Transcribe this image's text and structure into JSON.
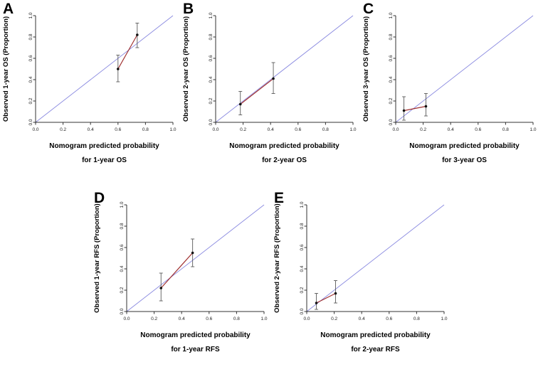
{
  "figure": {
    "background": "#ffffff"
  },
  "colors": {
    "reference_line": "#8a8ae0",
    "calibration_line": "#a03030",
    "error_bar": "#5a5a5a",
    "point": "#111111",
    "axis": "#333333",
    "tick_text": "#222222"
  },
  "chart_data": [
    {
      "type": "line",
      "panel": "A",
      "ylabel": "Observed 1-year OS (Proportion)",
      "xlabel_line1": "Nomogram predicted probability",
      "xlabel_line2": "for 1-year OS",
      "xlim": [
        0,
        1
      ],
      "ylim": [
        0,
        1
      ],
      "ticks": [
        0,
        0.2,
        0.4,
        0.6,
        0.8,
        1.0
      ],
      "reference_line": "diagonal",
      "points": [
        {
          "x": 0.6,
          "y": 0.5,
          "ci_low": 0.38,
          "ci_high": 0.63
        },
        {
          "x": 0.74,
          "y": 0.82,
          "ci_low": 0.7,
          "ci_high": 0.93
        }
      ]
    },
    {
      "type": "line",
      "panel": "B",
      "ylabel": "Observed 2-year OS (Proportion)",
      "xlabel_line1": "Nomogram predicted probability",
      "xlabel_line2": "for 2-year OS",
      "xlim": [
        0,
        1
      ],
      "ylim": [
        0,
        1
      ],
      "ticks": [
        0,
        0.2,
        0.4,
        0.6,
        0.8,
        1.0
      ],
      "reference_line": "diagonal",
      "points": [
        {
          "x": 0.18,
          "y": 0.17,
          "ci_low": 0.07,
          "ci_high": 0.29
        },
        {
          "x": 0.42,
          "y": 0.41,
          "ci_low": 0.27,
          "ci_high": 0.56
        }
      ]
    },
    {
      "type": "line",
      "panel": "C",
      "ylabel": "Observed 3-year OS (Proportion)",
      "xlabel_line1": "Nomogram predicted probability",
      "xlabel_line2": "for 3-year OS",
      "xlim": [
        0,
        1
      ],
      "ylim": [
        0,
        1
      ],
      "ticks": [
        0,
        0.2,
        0.4,
        0.6,
        0.8,
        1.0
      ],
      "reference_line": "diagonal",
      "points": [
        {
          "x": 0.06,
          "y": 0.11,
          "ci_low": 0.02,
          "ci_high": 0.24
        },
        {
          "x": 0.22,
          "y": 0.15,
          "ci_low": 0.06,
          "ci_high": 0.27
        }
      ]
    },
    {
      "type": "line",
      "panel": "D",
      "ylabel": "Observed 1-year RFS (Proportion)",
      "xlabel_line1": "Nomogram predicted probability",
      "xlabel_line2": "for 1-year RFS",
      "xlim": [
        0,
        1
      ],
      "ylim": [
        0,
        1
      ],
      "ticks": [
        0,
        0.2,
        0.4,
        0.6,
        0.8,
        1.0
      ],
      "reference_line": "diagonal",
      "points": [
        {
          "x": 0.25,
          "y": 0.22,
          "ci_low": 0.1,
          "ci_high": 0.36
        },
        {
          "x": 0.48,
          "y": 0.55,
          "ci_low": 0.42,
          "ci_high": 0.68
        }
      ]
    },
    {
      "type": "line",
      "panel": "E",
      "ylabel": "Observed 2-year RFS (Proportion)",
      "xlabel_line1": "Nomogram predicted probability",
      "xlabel_line2": "for 2-year RFS",
      "xlim": [
        0,
        1
      ],
      "ylim": [
        0,
        1
      ],
      "ticks": [
        0,
        0.2,
        0.4,
        0.6,
        0.8,
        1.0
      ],
      "reference_line": "diagonal",
      "points": [
        {
          "x": 0.07,
          "y": 0.08,
          "ci_low": 0.02,
          "ci_high": 0.17
        },
        {
          "x": 0.21,
          "y": 0.17,
          "ci_low": 0.08,
          "ci_high": 0.29
        }
      ]
    }
  ]
}
